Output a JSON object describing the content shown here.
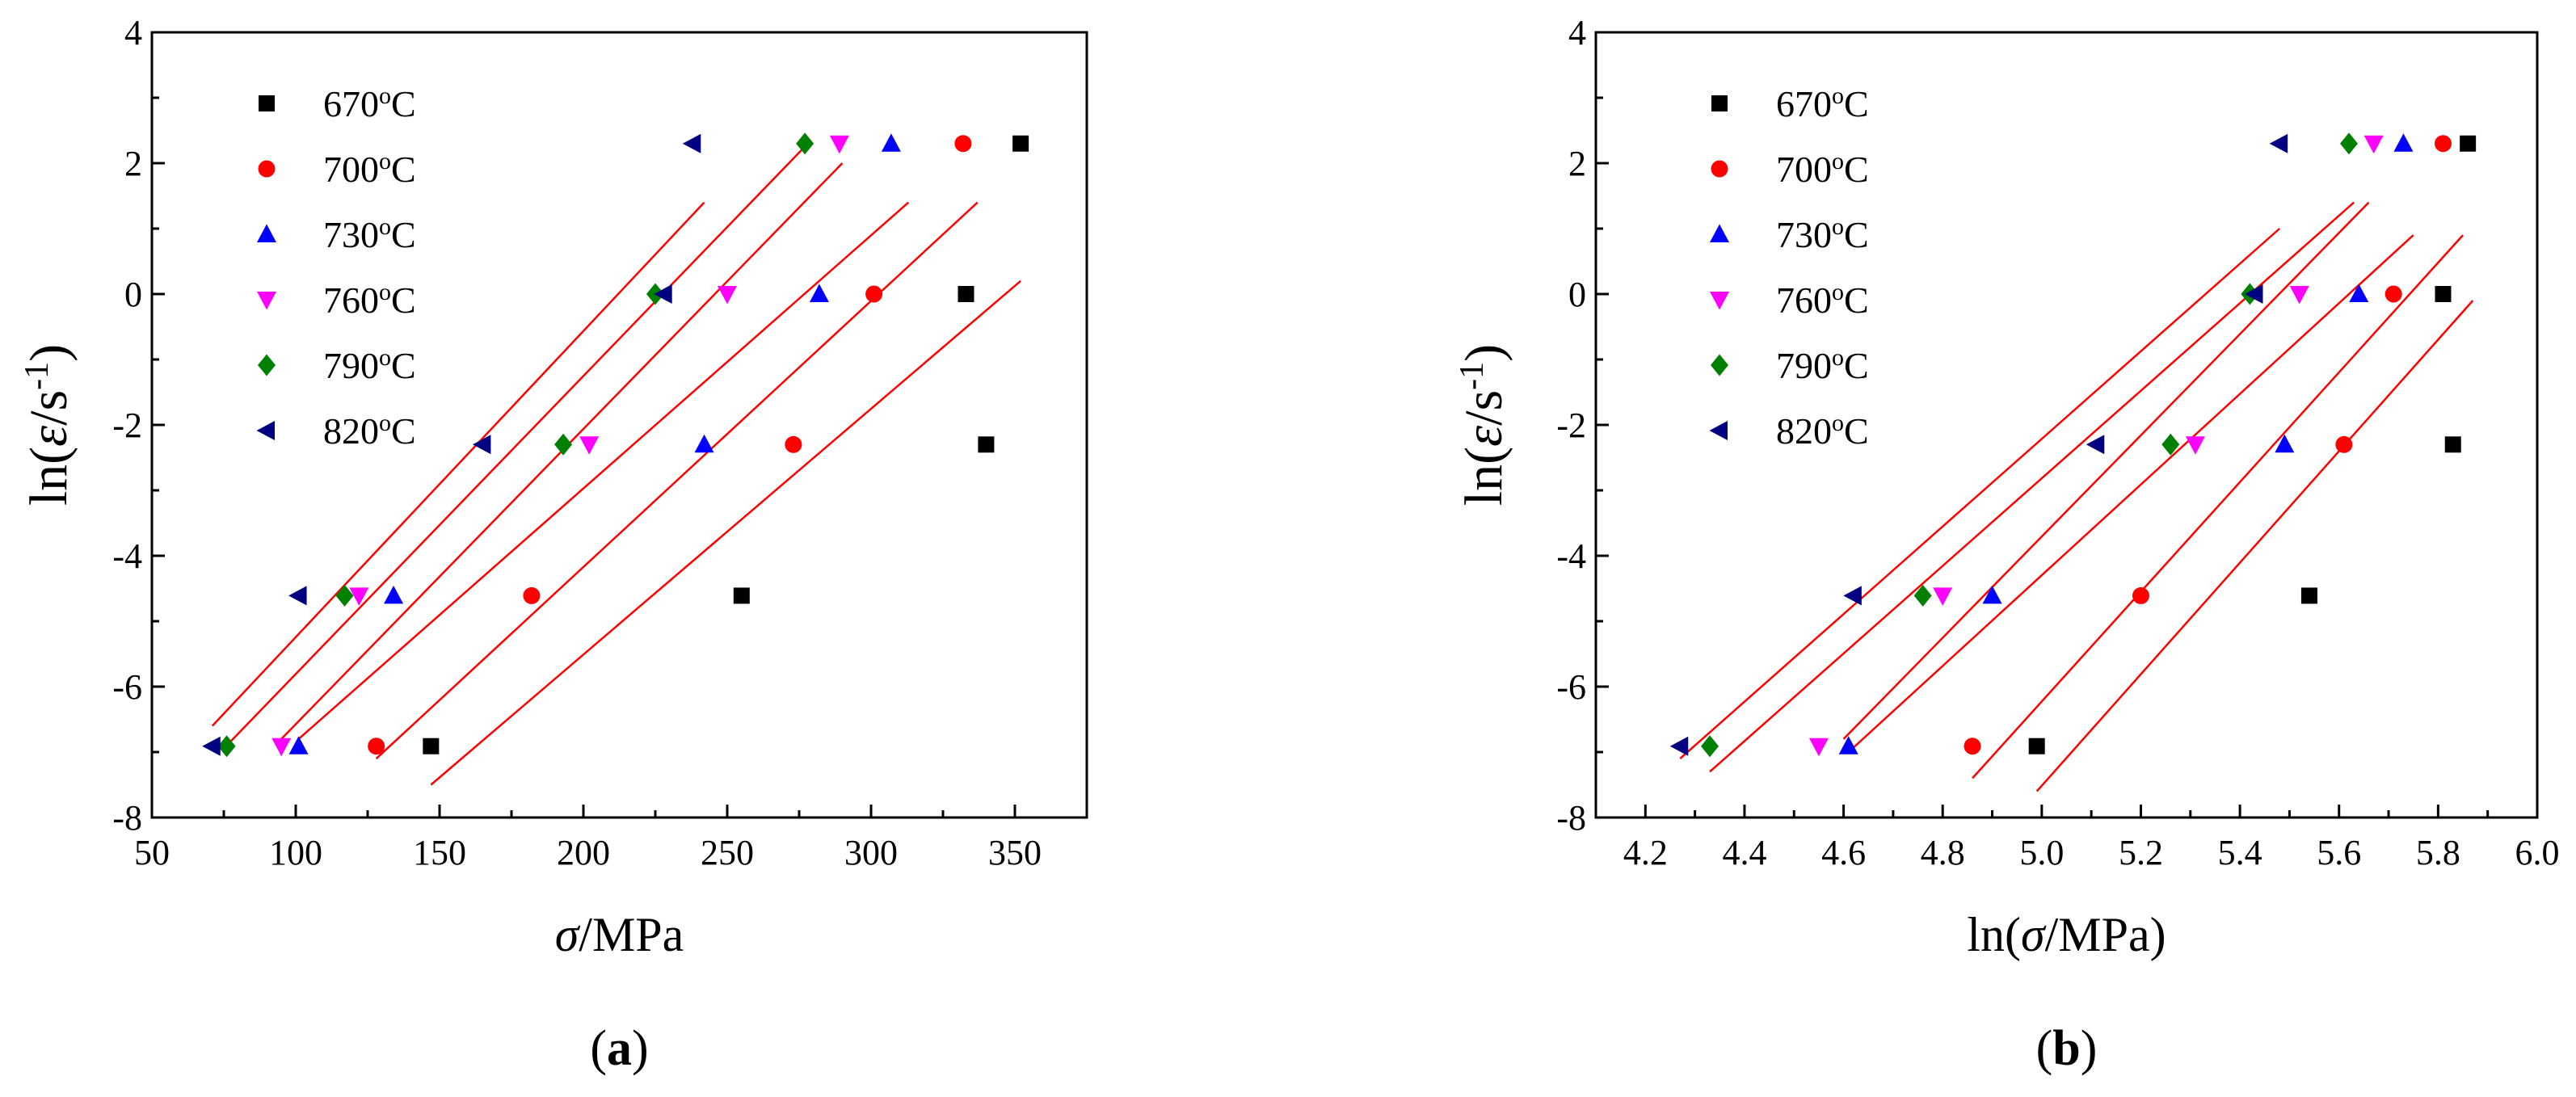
{
  "chart_data": [
    {
      "type": "scatter",
      "panel_label": {
        "open": "(",
        "letter": "a",
        "close": ")"
      },
      "xlabel": {
        "symbol": "σ",
        "unit": "/MPa"
      },
      "ylabel": {
        "prefix": "ln(",
        "symbol": "ε",
        "mid": "/s",
        "exp": "-1",
        "suffix": ")"
      },
      "xlim": [
        50,
        375
      ],
      "ylim": [
        -8,
        4
      ],
      "xticks": [
        50,
        100,
        150,
        200,
        250,
        300,
        350
      ],
      "yticks": [
        -8,
        -6,
        -4,
        -2,
        0,
        2,
        4
      ],
      "y_values": [
        -6.91,
        -4.61,
        -2.3,
        0,
        2.3
      ],
      "legend_position": "top-left",
      "series": [
        {
          "name": "670",
          "unit": "oC",
          "marker": "square",
          "color": "#000000",
          "x": [
            147,
            255,
            340,
            333,
            352
          ],
          "fit": {
            "x": [
              147,
              352
            ],
            "y": [
              -7.5,
              0.2
            ]
          }
        },
        {
          "name": "700",
          "unit": "oC",
          "marker": "circle",
          "color": "#ff0000",
          "x": [
            128,
            182,
            273,
            301,
            332
          ],
          "fit": {
            "x": [
              128,
              337
            ],
            "y": [
              -7.1,
              1.4
            ]
          }
        },
        {
          "name": "730",
          "unit": "oC",
          "marker": "triangle-up",
          "color": "#0000ff",
          "x": [
            101,
            134,
            242,
            282,
            307
          ],
          "fit": {
            "x": [
              101,
              313
            ],
            "y": [
              -6.8,
              1.4
            ]
          }
        },
        {
          "name": "760",
          "unit": "oC",
          "marker": "triangle-down",
          "color": "#ff00ff",
          "x": [
            95,
            122,
            202,
            250,
            289
          ],
          "fit": {
            "x": [
              95,
              290
            ],
            "y": [
              -6.8,
              2.0
            ]
          }
        },
        {
          "name": "790",
          "unit": "oC",
          "marker": "diamond",
          "color": "#008000",
          "x": [
            76,
            117,
            193,
            225,
            277
          ],
          "fit": {
            "x": [
              76,
              278
            ],
            "y": [
              -6.9,
              2.3
            ]
          }
        },
        {
          "name": "820",
          "unit": "oC",
          "marker": "triangle-left",
          "color": "#000080",
          "x": [
            71,
            101,
            165,
            228,
            238
          ],
          "fit": {
            "x": [
              71,
              242
            ],
            "y": [
              -6.6,
              1.4
            ]
          }
        }
      ]
    },
    {
      "type": "scatter",
      "panel_label": {
        "open": "(",
        "letter": "b",
        "close": ")"
      },
      "xlabel": {
        "prefix": "ln(",
        "symbol": "σ",
        "unit": "/MPa)"
      },
      "ylabel": {
        "prefix": "ln(",
        "symbol": "ε",
        "mid": "/s",
        "exp": "-1",
        "suffix": ")"
      },
      "xlim": [
        4.1,
        6.0
      ],
      "ylim": [
        -8,
        4
      ],
      "xticks": [
        "4.2",
        "4.4",
        "4.6",
        "4.8",
        "5.0",
        "5.2",
        "5.4",
        "5.6",
        "5.8",
        "6.0"
      ],
      "yticks": [
        -8,
        -6,
        -4,
        -2,
        0,
        2,
        4
      ],
      "y_values": [
        -6.91,
        -4.61,
        -2.3,
        0,
        2.3
      ],
      "legend_position": "top-left",
      "series": [
        {
          "name": "670",
          "unit": "oC",
          "marker": "square",
          "color": "#000000",
          "x": [
            4.99,
            5.54,
            5.83,
            5.81,
            5.86
          ],
          "fit": {
            "x": [
              4.99,
              5.87
            ],
            "y": [
              -7.6,
              -0.1
            ]
          }
        },
        {
          "name": "700",
          "unit": "oC",
          "marker": "circle",
          "color": "#ff0000",
          "x": [
            4.86,
            5.2,
            5.61,
            5.71,
            5.81
          ],
          "fit": {
            "x": [
              4.86,
              5.85
            ],
            "y": [
              -7.4,
              0.9
            ]
          }
        },
        {
          "name": "730",
          "unit": "oC",
          "marker": "triangle-up",
          "color": "#0000ff",
          "x": [
            4.61,
            4.9,
            5.49,
            5.64,
            5.73
          ],
          "fit": {
            "x": [
              4.61,
              5.75
            ],
            "y": [
              -7.0,
              0.9
            ]
          }
        },
        {
          "name": "760",
          "unit": "oC",
          "marker": "triangle-down",
          "color": "#ff00ff",
          "x": [
            4.55,
            4.8,
            5.31,
            5.52,
            5.67
          ],
          "fit": {
            "x": [
              4.6,
              5.66
            ],
            "y": [
              -6.8,
              1.4
            ]
          }
        },
        {
          "name": "790",
          "unit": "oC",
          "marker": "diamond",
          "color": "#008000",
          "x": [
            4.33,
            4.76,
            5.26,
            5.42,
            5.62
          ],
          "fit": {
            "x": [
              4.33,
              5.63
            ],
            "y": [
              -7.3,
              1.4
            ]
          }
        },
        {
          "name": "820",
          "unit": "oC",
          "marker": "triangle-left",
          "color": "#000080",
          "x": [
            4.27,
            4.62,
            5.11,
            5.43,
            5.48
          ],
          "fit": {
            "x": [
              4.27,
              5.48
            ],
            "y": [
              -7.1,
              1.0
            ]
          }
        }
      ]
    }
  ]
}
